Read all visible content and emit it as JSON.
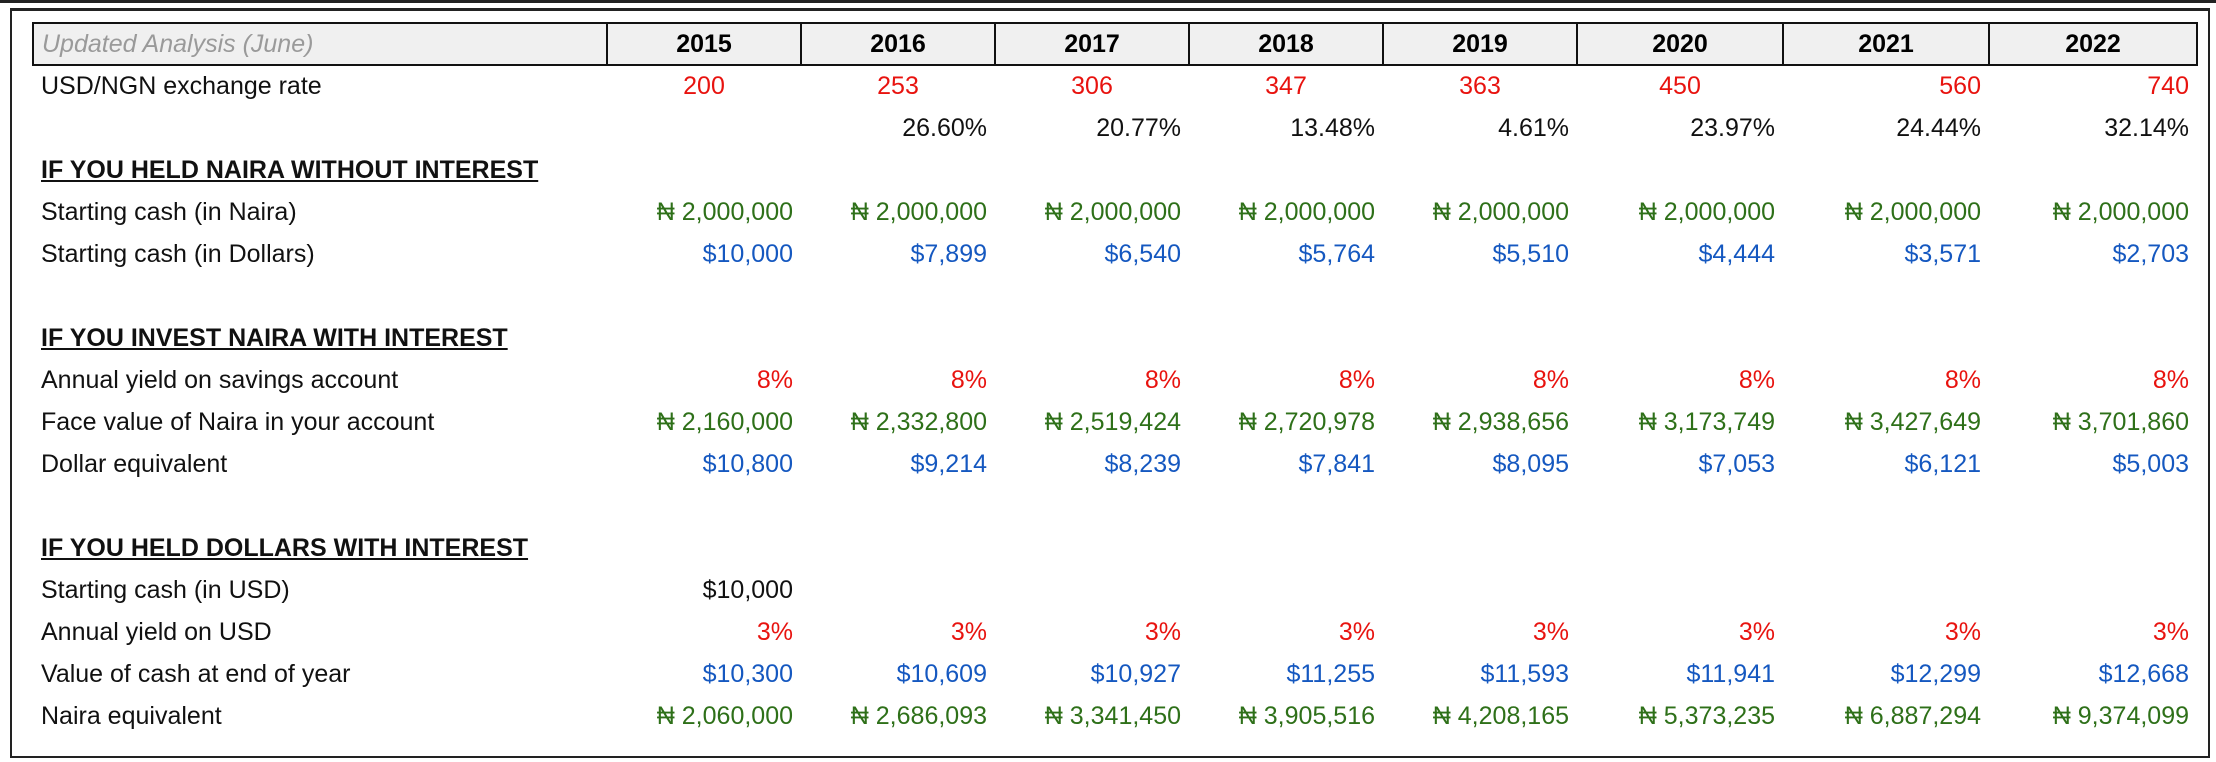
{
  "header": {
    "title": "Updated Analysis (June)",
    "years": [
      "2015",
      "2016",
      "2017",
      "2018",
      "2019",
      "2020",
      "2021",
      "2022"
    ]
  },
  "exchange_rate": {
    "label": "USD/NGN exchange rate",
    "values": [
      "200",
      "253",
      "306",
      "347",
      "363",
      "450",
      "560",
      "740"
    ],
    "pct_change": [
      "",
      "26.60%",
      "20.77%",
      "13.48%",
      "4.61%",
      "23.97%",
      "24.44%",
      "32.14%"
    ]
  },
  "naira_no_interest": {
    "heading": "IF YOU HELD NAIRA WITHOUT INTEREST",
    "rows": [
      {
        "label": "Starting cash (in Naira)",
        "color": "green",
        "values": [
          "₦ 2,000,000",
          "₦ 2,000,000",
          "₦ 2,000,000",
          "₦ 2,000,000",
          "₦ 2,000,000",
          "₦ 2,000,000",
          "₦ 2,000,000",
          "₦ 2,000,000"
        ]
      },
      {
        "label": "Starting cash (in Dollars)",
        "color": "blue",
        "values": [
          "$10,000",
          "$7,899",
          "$6,540",
          "$5,764",
          "$5,510",
          "$4,444",
          "$3,571",
          "$2,703"
        ]
      }
    ]
  },
  "naira_with_interest": {
    "heading": "IF YOU INVEST NAIRA WITH INTEREST",
    "rows": [
      {
        "label": "Annual yield on savings account",
        "color": "red",
        "values": [
          "8%",
          "8%",
          "8%",
          "8%",
          "8%",
          "8%",
          "8%",
          "8%"
        ]
      },
      {
        "label": "Face value of Naira in your account",
        "color": "green",
        "values": [
          "₦ 2,160,000",
          "₦ 2,332,800",
          "₦ 2,519,424",
          "₦ 2,720,978",
          "₦ 2,938,656",
          "₦ 3,173,749",
          "₦ 3,427,649",
          "₦ 3,701,860"
        ]
      },
      {
        "label": "Dollar equivalent",
        "color": "blue",
        "values": [
          "$10,800",
          "$9,214",
          "$8,239",
          "$7,841",
          "$8,095",
          "$7,053",
          "$6,121",
          "$5,003"
        ]
      }
    ]
  },
  "dollars_with_interest": {
    "heading": "IF YOU HELD DOLLARS WITH INTEREST",
    "rows": [
      {
        "label": "Starting cash (in USD)",
        "color": "black",
        "values": [
          "$10,000",
          "",
          "",
          "",
          "",
          "",
          "",
          ""
        ]
      },
      {
        "label": "Annual yield on USD",
        "color": "red",
        "values": [
          "3%",
          "3%",
          "3%",
          "3%",
          "3%",
          "3%",
          "3%",
          "3%"
        ]
      },
      {
        "label": "Value of cash at end of year",
        "color": "blue",
        "values": [
          "$10,300",
          "$10,609",
          "$10,927",
          "$11,255",
          "$11,593",
          "$11,941",
          "$12,299",
          "$12,668"
        ]
      },
      {
        "label": "Naira equivalent",
        "color": "green",
        "values": [
          "₦ 2,060,000",
          "₦ 2,686,093",
          "₦ 3,341,450",
          "₦ 3,905,516",
          "₦ 4,208,165",
          "₦ 5,373,235",
          "₦ 6,887,294",
          "₦ 9,374,099"
        ]
      }
    ]
  }
}
